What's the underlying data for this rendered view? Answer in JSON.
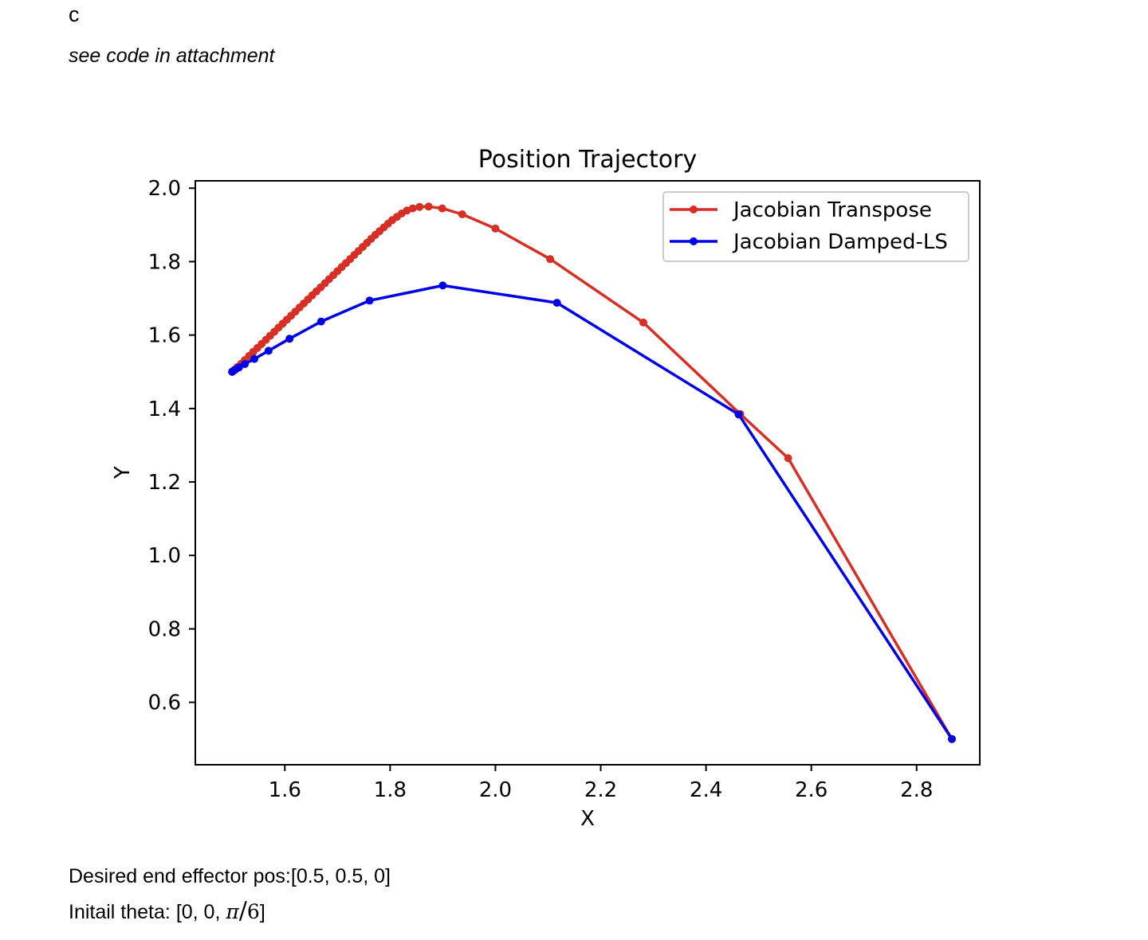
{
  "header": {
    "section_letter": "c",
    "note": "see code in attachment"
  },
  "footer": {
    "desired_label": "Desired end effector pos:",
    "desired_value": "[0.5, 0.5, 0]",
    "theta_label": "Initail theta: ",
    "theta_prefix": "[0, 0, ",
    "theta_numerator": "π",
    "theta_slash": "/",
    "theta_denominator": "6",
    "theta_suffix": "]"
  },
  "chart_data": {
    "type": "line",
    "title": "Position Trajectory",
    "xlabel": "X",
    "ylabel": "Y",
    "xlim": [
      1.43,
      2.92
    ],
    "ylim": [
      0.43,
      2.02
    ],
    "xticks": [
      1.6,
      1.8,
      2.0,
      2.2,
      2.4,
      2.6,
      2.8
    ],
    "yticks": [
      0.6,
      0.8,
      1.0,
      1.2,
      1.4,
      1.6,
      1.8,
      2.0
    ],
    "xtick_labels": [
      "1.6",
      "1.8",
      "2.0",
      "2.2",
      "2.4",
      "2.6",
      "2.8"
    ],
    "ytick_labels": [
      "0.6",
      "0.8",
      "1.0",
      "1.2",
      "1.4",
      "1.6",
      "1.8",
      "2.0"
    ],
    "grid": false,
    "legend_position": "top-right",
    "series": [
      {
        "name": "Jacobian Transpose",
        "color": "#d62f26",
        "marker": "circle",
        "points": [
          [
            2.867,
            0.5
          ],
          [
            2.556,
            1.265
          ],
          [
            2.465,
            1.385
          ],
          [
            2.281,
            1.634
          ],
          [
            2.104,
            1.807
          ],
          [
            2.0,
            1.89
          ],
          [
            1.937,
            1.929
          ],
          [
            1.899,
            1.945
          ],
          [
            1.873,
            1.95
          ],
          [
            1.856,
            1.949
          ],
          [
            1.843,
            1.945
          ],
          [
            1.832,
            1.939
          ],
          [
            1.822,
            1.931
          ],
          [
            1.813,
            1.922
          ],
          [
            1.804,
            1.913
          ],
          [
            1.796,
            1.903
          ],
          [
            1.788,
            1.893
          ],
          [
            1.78,
            1.883
          ],
          [
            1.772,
            1.873
          ],
          [
            1.764,
            1.862
          ],
          [
            1.756,
            1.851
          ],
          [
            1.748,
            1.84
          ],
          [
            1.74,
            1.829
          ],
          [
            1.732,
            1.818
          ],
          [
            1.724,
            1.807
          ],
          [
            1.716,
            1.796
          ],
          [
            1.708,
            1.785
          ],
          [
            1.7,
            1.774
          ],
          [
            1.692,
            1.763
          ],
          [
            1.684,
            1.752
          ],
          [
            1.676,
            1.741
          ],
          [
            1.668,
            1.73
          ],
          [
            1.66,
            1.719
          ],
          [
            1.652,
            1.708
          ],
          [
            1.644,
            1.697
          ],
          [
            1.636,
            1.686
          ],
          [
            1.628,
            1.675
          ],
          [
            1.62,
            1.664
          ],
          [
            1.612,
            1.653
          ],
          [
            1.604,
            1.642
          ],
          [
            1.596,
            1.631
          ],
          [
            1.588,
            1.62
          ],
          [
            1.58,
            1.609
          ],
          [
            1.572,
            1.598
          ],
          [
            1.564,
            1.587
          ],
          [
            1.556,
            1.576
          ],
          [
            1.548,
            1.565
          ],
          [
            1.54,
            1.554
          ],
          [
            1.532,
            1.543
          ],
          [
            1.524,
            1.532
          ],
          [
            1.517,
            1.522
          ],
          [
            1.51,
            1.513
          ],
          [
            1.504,
            1.505
          ],
          [
            1.5,
            1.5
          ]
        ]
      },
      {
        "name": "Jacobian Damped-LS",
        "color": "#0000e6",
        "marker": "circle",
        "points": [
          [
            2.867,
            0.5
          ],
          [
            2.462,
            1.384
          ],
          [
            2.117,
            1.688
          ],
          [
            1.9,
            1.735
          ],
          [
            1.761,
            1.694
          ],
          [
            1.669,
            1.637
          ],
          [
            1.609,
            1.59
          ],
          [
            1.569,
            1.557
          ],
          [
            1.542,
            1.535
          ],
          [
            1.524,
            1.521
          ],
          [
            1.513,
            1.512
          ],
          [
            1.506,
            1.506
          ],
          [
            1.502,
            1.502
          ],
          [
            1.5,
            1.5
          ]
        ]
      }
    ]
  }
}
